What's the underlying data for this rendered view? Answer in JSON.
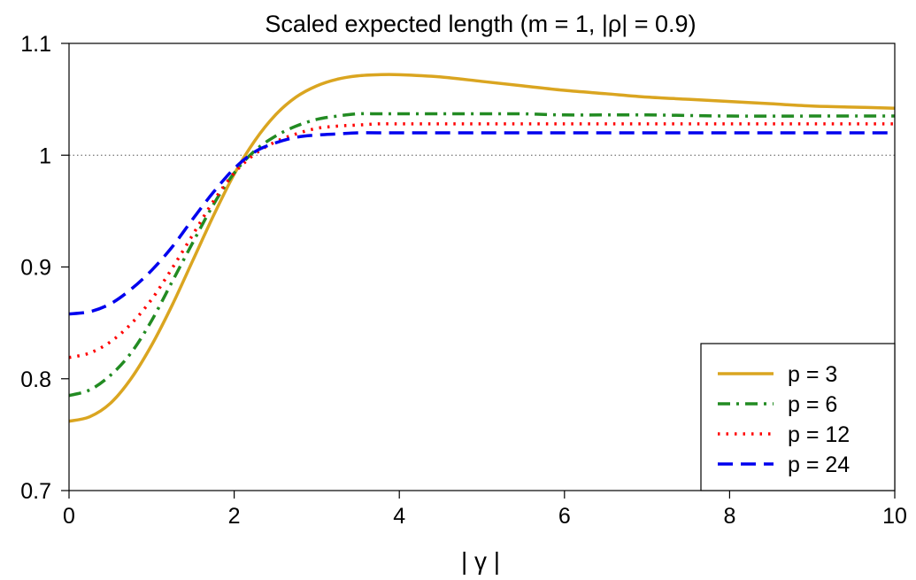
{
  "chart_data": {
    "type": "line",
    "title": "Scaled expected length (m = 1, |ρ| = 0.9)",
    "xlabel": "| γ |",
    "ylabel": "",
    "xlim": [
      0,
      10
    ],
    "ylim": [
      0.7,
      1.1
    ],
    "xticks": [
      0,
      2,
      4,
      6,
      8,
      10
    ],
    "xtick_labels": [
      "0",
      "2",
      "4",
      "6",
      "8",
      "10"
    ],
    "yticks": [
      0.7,
      0.8,
      0.9,
      1.0,
      1.1
    ],
    "ytick_labels": [
      "0.7",
      "0.8",
      "0.9",
      "1",
      "1.1"
    ],
    "reference_line": 1.0,
    "grid": false,
    "legend_position": "bottom-right",
    "series": [
      {
        "name": "p = 3",
        "color": "#DAA520",
        "style": "solid",
        "x": [
          0,
          0.25,
          0.5,
          0.75,
          1,
          1.25,
          1.5,
          1.75,
          2,
          2.25,
          2.5,
          2.75,
          3,
          3.25,
          3.5,
          3.75,
          4,
          4.5,
          5,
          5.5,
          6,
          6.5,
          7,
          7.5,
          8,
          8.5,
          9,
          9.5,
          10
        ],
        "y": [
          0.762,
          0.766,
          0.778,
          0.8,
          0.83,
          0.866,
          0.906,
          0.946,
          0.983,
          1.013,
          1.036,
          1.052,
          1.062,
          1.068,
          1.071,
          1.072,
          1.072,
          1.07,
          1.066,
          1.062,
          1.058,
          1.055,
          1.052,
          1.05,
          1.048,
          1.046,
          1.044,
          1.043,
          1.042
        ]
      },
      {
        "name": "p = 6",
        "color": "#228B22",
        "style": "dashdot",
        "x": [
          0,
          0.25,
          0.5,
          0.75,
          1,
          1.25,
          1.5,
          1.75,
          2,
          2.25,
          2.5,
          2.75,
          3,
          3.25,
          3.5,
          3.75,
          4,
          4.5,
          5,
          5.5,
          6,
          7,
          8,
          9,
          10
        ],
        "y": [
          0.785,
          0.79,
          0.803,
          0.823,
          0.852,
          0.887,
          0.922,
          0.956,
          0.984,
          1.004,
          1.017,
          1.026,
          1.032,
          1.035,
          1.037,
          1.037,
          1.037,
          1.037,
          1.037,
          1.037,
          1.036,
          1.036,
          1.035,
          1.035,
          1.035
        ]
      },
      {
        "name": "p = 12",
        "color": "#FF0000",
        "style": "dotted",
        "x": [
          0,
          0.25,
          0.5,
          0.75,
          1,
          1.25,
          1.5,
          1.75,
          2,
          2.25,
          2.5,
          2.75,
          3,
          3.25,
          3.5,
          3.75,
          4,
          4.5,
          5,
          6,
          7,
          8,
          9,
          10
        ],
        "y": [
          0.819,
          0.823,
          0.833,
          0.849,
          0.871,
          0.899,
          0.929,
          0.959,
          0.984,
          1.001,
          1.012,
          1.019,
          1.024,
          1.026,
          1.027,
          1.028,
          1.028,
          1.028,
          1.028,
          1.028,
          1.028,
          1.028,
          1.028,
          1.028
        ]
      },
      {
        "name": "p = 24",
        "color": "#0000EE",
        "style": "dashed",
        "x": [
          0,
          0.25,
          0.5,
          0.75,
          1,
          1.25,
          1.5,
          1.75,
          2,
          2.25,
          2.5,
          2.75,
          3,
          3.25,
          3.5,
          3.75,
          4,
          5,
          6,
          7,
          8,
          9,
          10
        ],
        "y": [
          0.858,
          0.86,
          0.867,
          0.88,
          0.897,
          0.918,
          0.943,
          0.967,
          0.988,
          1.003,
          1.011,
          1.016,
          1.018,
          1.019,
          1.02,
          1.02,
          1.02,
          1.02,
          1.02,
          1.02,
          1.02,
          1.02,
          1.02
        ]
      }
    ]
  }
}
